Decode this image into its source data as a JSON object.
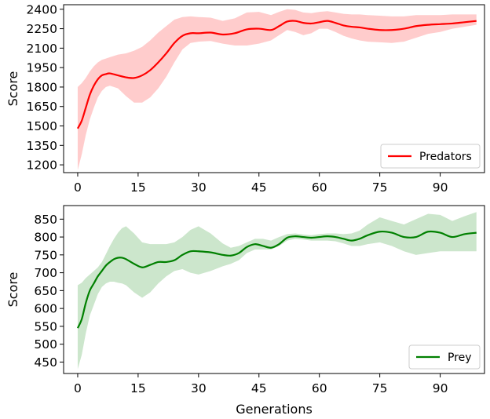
{
  "chart_data": [
    {
      "type": "line",
      "xlabel": "",
      "ylabel": "Score",
      "xlim": [
        -3.5,
        101
      ],
      "ylim": [
        1140,
        2435
      ],
      "xticks": [
        0,
        15,
        30,
        45,
        60,
        75,
        90
      ],
      "yticks": [
        1200,
        1350,
        1500,
        1650,
        1800,
        1950,
        2100,
        2250,
        2400
      ],
      "legend_position": "lower-right",
      "series": [
        {
          "name": "Predators",
          "color": "#ff0000",
          "band_color": "#ffcccc",
          "x": [
            0,
            1,
            2,
            3,
            4,
            5,
            6,
            7,
            8,
            10,
            12,
            14,
            16,
            18,
            20,
            22,
            24,
            26,
            28,
            30,
            33,
            36,
            39,
            42,
            45,
            48,
            50,
            52,
            54,
            56,
            58,
            60,
            62,
            64,
            66,
            68,
            70,
            72,
            75,
            78,
            81,
            84,
            87,
            90,
            93,
            96,
            99
          ],
          "mean": [
            1480,
            1540,
            1640,
            1740,
            1810,
            1860,
            1890,
            1900,
            1905,
            1890,
            1875,
            1870,
            1890,
            1930,
            1990,
            2060,
            2140,
            2195,
            2215,
            2215,
            2220,
            2205,
            2215,
            2245,
            2250,
            2240,
            2270,
            2305,
            2310,
            2295,
            2290,
            2300,
            2310,
            2295,
            2275,
            2265,
            2260,
            2250,
            2240,
            2240,
            2250,
            2270,
            2280,
            2285,
            2290,
            2300,
            2310
          ],
          "lower": [
            1160,
            1280,
            1430,
            1550,
            1640,
            1720,
            1770,
            1800,
            1810,
            1790,
            1730,
            1680,
            1680,
            1720,
            1790,
            1880,
            1990,
            2090,
            2140,
            2150,
            2155,
            2135,
            2120,
            2120,
            2135,
            2160,
            2200,
            2240,
            2225,
            2200,
            2215,
            2250,
            2250,
            2225,
            2195,
            2175,
            2160,
            2150,
            2145,
            2140,
            2150,
            2180,
            2210,
            2225,
            2250,
            2265,
            2280
          ],
          "upper": [
            1800,
            1830,
            1870,
            1920,
            1960,
            1990,
            2010,
            2020,
            2030,
            2050,
            2060,
            2080,
            2110,
            2160,
            2220,
            2270,
            2320,
            2340,
            2345,
            2340,
            2335,
            2310,
            2330,
            2375,
            2380,
            2355,
            2380,
            2400,
            2395,
            2375,
            2370,
            2380,
            2385,
            2375,
            2365,
            2360,
            2360,
            2355,
            2350,
            2345,
            2345,
            2355,
            2355,
            2355,
            2360,
            2360,
            2360
          ]
        }
      ]
    },
    {
      "type": "line",
      "xlabel": "Generations",
      "ylabel": "Score",
      "xlim": [
        -3.5,
        101
      ],
      "ylim": [
        418,
        888
      ],
      "xticks": [
        0,
        15,
        30,
        45,
        60,
        75,
        90
      ],
      "yticks": [
        450,
        500,
        550,
        600,
        650,
        700,
        750,
        800,
        850
      ],
      "legend_position": "lower-right",
      "series": [
        {
          "name": "Prey",
          "color": "#008000",
          "band_color": "#cce6cc",
          "x": [
            0,
            1,
            2,
            3,
            4,
            5,
            6,
            7,
            8,
            9,
            10,
            11,
            12,
            14,
            16,
            18,
            20,
            22,
            24,
            26,
            28,
            30,
            33,
            36,
            38,
            40,
            42,
            44,
            46,
            48,
            50,
            52,
            54,
            56,
            58,
            60,
            62,
            64,
            66,
            68,
            70,
            72,
            75,
            78,
            81,
            84,
            87,
            90,
            93,
            96,
            99
          ],
          "mean": [
            545,
            570,
            615,
            650,
            670,
            690,
            705,
            720,
            730,
            738,
            742,
            742,
            738,
            725,
            715,
            722,
            730,
            730,
            735,
            750,
            760,
            760,
            757,
            750,
            748,
            755,
            772,
            780,
            775,
            770,
            780,
            798,
            802,
            800,
            798,
            800,
            802,
            800,
            795,
            790,
            795,
            805,
            815,
            812,
            800,
            800,
            815,
            812,
            800,
            808,
            812
          ],
          "lower": [
            430,
            470,
            530,
            580,
            610,
            640,
            660,
            670,
            675,
            675,
            672,
            670,
            665,
            645,
            630,
            645,
            670,
            690,
            705,
            710,
            700,
            695,
            705,
            718,
            725,
            735,
            755,
            765,
            765,
            765,
            775,
            790,
            795,
            793,
            790,
            790,
            790,
            788,
            782,
            775,
            775,
            780,
            785,
            775,
            760,
            750,
            755,
            760,
            760,
            760,
            760
          ],
          "upper": [
            665,
            672,
            685,
            695,
            705,
            715,
            730,
            752,
            775,
            795,
            812,
            825,
            830,
            810,
            785,
            780,
            780,
            780,
            785,
            800,
            820,
            830,
            810,
            782,
            770,
            775,
            785,
            795,
            795,
            790,
            800,
            808,
            810,
            807,
            805,
            808,
            810,
            810,
            808,
            810,
            818,
            835,
            855,
            845,
            835,
            850,
            865,
            862,
            845,
            858,
            870
          ]
        }
      ]
    }
  ]
}
